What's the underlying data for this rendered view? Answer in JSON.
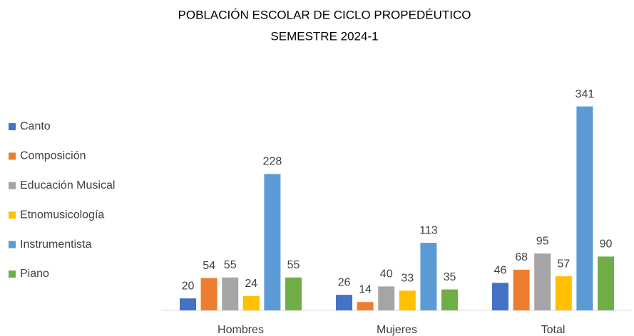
{
  "chart_data": {
    "type": "bar",
    "title": "POBLACIÓN ESCOLAR DE CICLO PROPEDÉUTICO",
    "subtitle": "SEMESTRE 2024-1",
    "categories": [
      "Hombres",
      "Mujeres",
      "Total"
    ],
    "series": [
      {
        "name": "Canto",
        "color": "#4472c4",
        "values": [
          20,
          26,
          46
        ]
      },
      {
        "name": "Composición",
        "color": "#ed7d31",
        "values": [
          54,
          14,
          68
        ]
      },
      {
        "name": "Educación Musical",
        "color": "#a5a5a5",
        "values": [
          55,
          40,
          95
        ]
      },
      {
        "name": "Etnomusicología",
        "color": "#ffc000",
        "values": [
          24,
          33,
          57
        ]
      },
      {
        "name": "Instrumentista",
        "color": "#5b9bd5",
        "values": [
          228,
          113,
          341
        ]
      },
      {
        "name": "Piano",
        "color": "#70ad47",
        "values": [
          55,
          35,
          90
        ]
      }
    ],
    "ylim": [
      0,
      400
    ],
    "legend": "left"
  }
}
